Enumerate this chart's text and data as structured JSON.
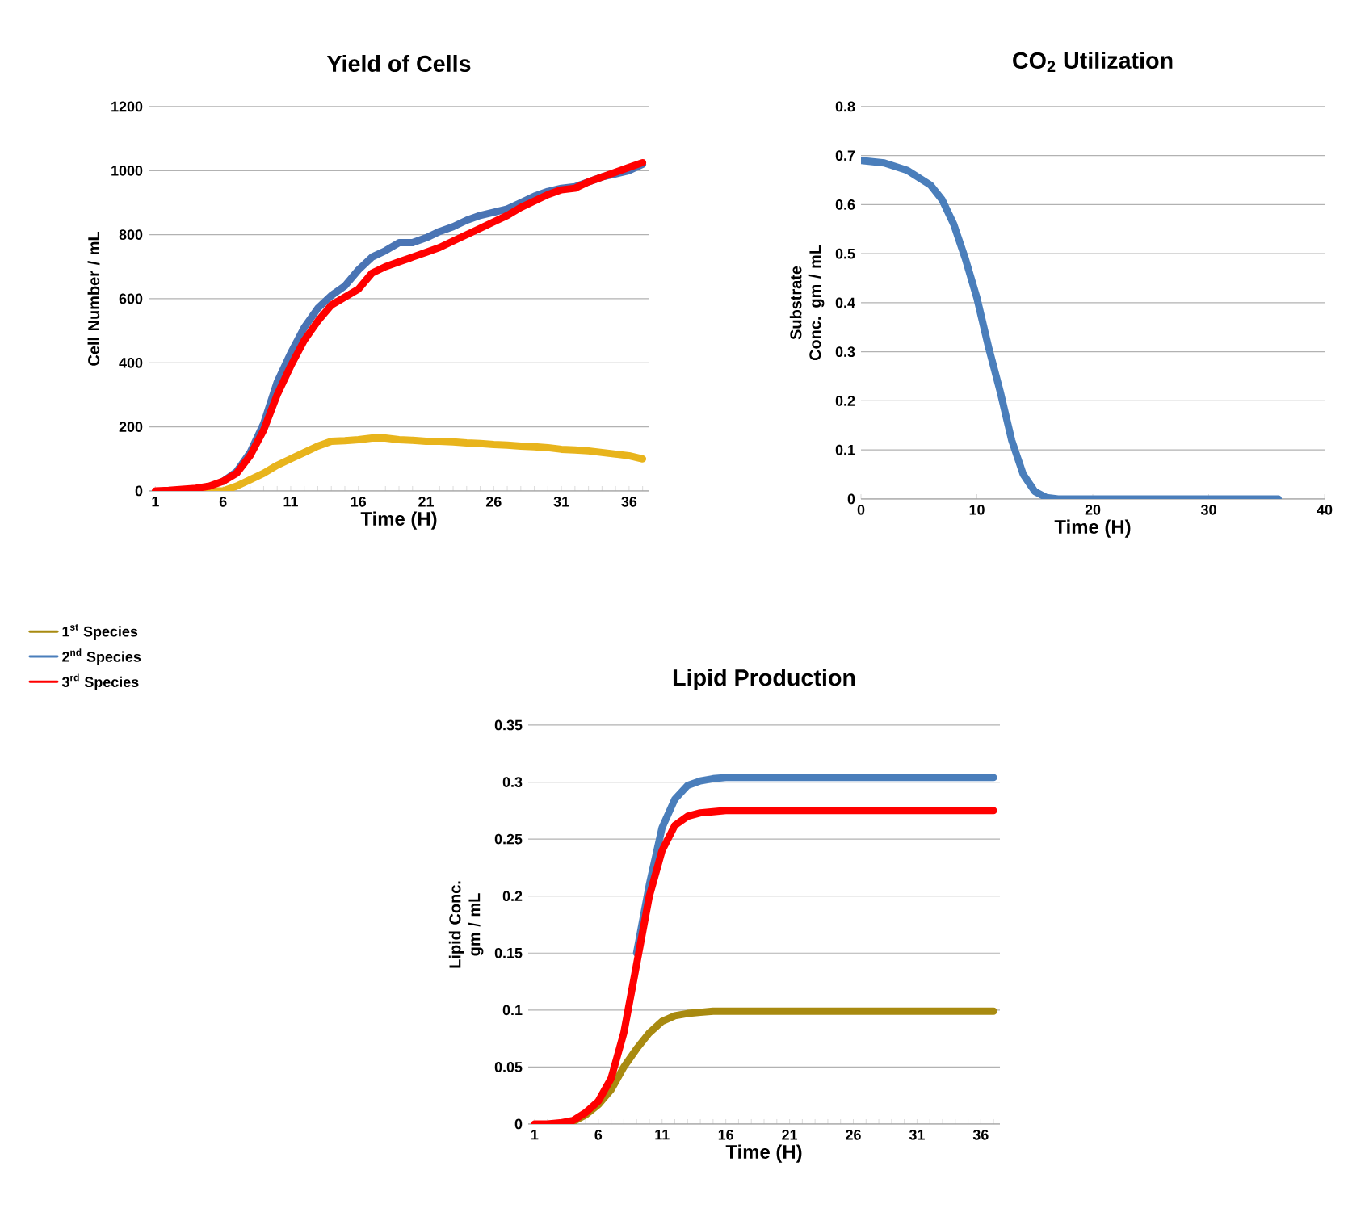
{
  "chart_data": [
    {
      "type": "line",
      "title": "Yield of Cells",
      "xlabel": "Time (H)",
      "ylabel": "Cell Number / mL",
      "categories": [
        "1",
        null,
        null,
        null,
        null,
        "6",
        null,
        null,
        null,
        null,
        "11",
        null,
        null,
        null,
        null,
        "16",
        null,
        null,
        null,
        null,
        "21",
        null,
        null,
        null,
        null,
        "26",
        null,
        null,
        null,
        null,
        "31",
        null,
        null,
        null,
        null,
        "36",
        null
      ],
      "ylim": [
        0,
        1200
      ],
      "yticks": [
        0,
        200,
        400,
        600,
        800,
        1000,
        1200
      ],
      "grid": "y",
      "series": [
        {
          "color": "#e8b41c",
          "values": [
            null,
            null,
            0,
            0,
            0,
            0,
            15,
            35,
            55,
            80,
            100,
            120,
            140,
            155,
            157,
            160,
            165,
            165,
            160,
            158,
            155,
            155,
            153,
            150,
            148,
            145,
            143,
            140,
            138,
            135,
            130,
            128,
            125,
            120,
            115,
            110,
            100
          ]
        },
        {
          "color": "#4a74b4",
          "values": [
            null,
            null,
            null,
            null,
            null,
            30,
            60,
            120,
            210,
            340,
            430,
            510,
            570,
            610,
            640,
            690,
            730,
            750,
            775,
            775,
            790,
            810,
            825,
            845,
            860,
            870,
            880,
            900,
            920,
            935,
            945,
            950,
            965,
            980,
            990,
            1000,
            1020
          ]
        },
        {
          "color": "#ff0000",
          "values": [
            0,
            2,
            5,
            8,
            15,
            30,
            55,
            110,
            190,
            300,
            390,
            470,
            530,
            580,
            605,
            630,
            680,
            700,
            715,
            730,
            745,
            760,
            780,
            800,
            820,
            840,
            860,
            885,
            905,
            925,
            940,
            945,
            965,
            980,
            995,
            1010,
            1025
          ]
        }
      ]
    },
    {
      "type": "line",
      "title": "CO$_{2}$ Utilization",
      "xlabel": "Time (H)",
      "ylabel": "Substrate Conc. gm / mL",
      "xlim": [
        0,
        40
      ],
      "xticks": [
        0,
        10,
        20,
        30,
        40
      ],
      "ylim": [
        0,
        0.8
      ],
      "yticks": [
        0,
        0.1,
        0.2,
        0.3,
        0.4,
        0.5,
        0.6,
        0.7,
        0.8
      ],
      "grid": "y",
      "series": [
        {
          "color": "#4a7ebb",
          "x": [
            0,
            2,
            4,
            6,
            7,
            8,
            9,
            10,
            11,
            12,
            13,
            14,
            15,
            16,
            17,
            20,
            30,
            36
          ],
          "values": [
            0.69,
            0.685,
            0.67,
            0.64,
            0.61,
            0.56,
            0.49,
            0.41,
            0.31,
            0.22,
            0.12,
            0.05,
            0.015,
            0.003,
            0,
            0,
            0,
            0
          ]
        }
      ]
    },
    {
      "type": "line",
      "title": "Lipid Production",
      "xlabel": "Time (H)",
      "ylabel": "Lipid Conc. gm / mL",
      "categories": [
        "1",
        null,
        null,
        null,
        null,
        "6",
        null,
        null,
        null,
        null,
        "11",
        null,
        null,
        null,
        null,
        "16",
        null,
        null,
        null,
        null,
        "21",
        null,
        null,
        null,
        null,
        "26",
        null,
        null,
        null,
        null,
        "31",
        null,
        null,
        null,
        null,
        "36",
        null
      ],
      "ylim": [
        0,
        0.35
      ],
      "yticks": [
        0,
        0.05,
        0.1,
        0.15,
        0.2,
        0.25,
        0.3,
        0.35
      ],
      "grid": "y",
      "legend": "left",
      "series": [
        {
          "name": "1$^{st}$ Species",
          "color": "#a88a10",
          "values": [
            null,
            null,
            0,
            0.002,
            0.008,
            0.017,
            0.03,
            0.05,
            0.066,
            0.08,
            0.09,
            0.095,
            0.097,
            0.098,
            0.099,
            0.099,
            0.099,
            0.099,
            0.099,
            0.099,
            0.099,
            0.099,
            0.099,
            0.099,
            0.099,
            0.099,
            0.099,
            0.099,
            0.099,
            0.099,
            0.099,
            0.099,
            0.099,
            0.099,
            0.099,
            0.099,
            0.099
          ]
        },
        {
          "name": "2$^{nd}$ Species",
          "color": "#4a7ebb",
          "values": [
            null,
            null,
            null,
            null,
            null,
            null,
            null,
            null,
            0.15,
            0.21,
            0.26,
            0.285,
            0.297,
            0.301,
            0.303,
            0.304,
            0.304,
            0.304,
            0.304,
            0.304,
            0.304,
            0.304,
            0.304,
            0.304,
            0.304,
            0.304,
            0.304,
            0.304,
            0.304,
            0.304,
            0.304,
            0.304,
            0.304,
            0.304,
            0.304,
            0.304,
            0.304
          ]
        },
        {
          "name": "3$^{rd}$ Species",
          "color": "#ff0000",
          "values": [
            0,
            0,
            0.001,
            0.003,
            0.01,
            0.02,
            0.04,
            0.08,
            0.14,
            0.2,
            0.24,
            0.262,
            0.27,
            0.273,
            0.274,
            0.275,
            0.275,
            0.275,
            0.275,
            0.275,
            0.275,
            0.275,
            0.275,
            0.275,
            0.275,
            0.275,
            0.275,
            0.275,
            0.275,
            0.275,
            0.275,
            0.275,
            0.275,
            0.275,
            0.275,
            0.275,
            0.275
          ]
        }
      ]
    }
  ]
}
